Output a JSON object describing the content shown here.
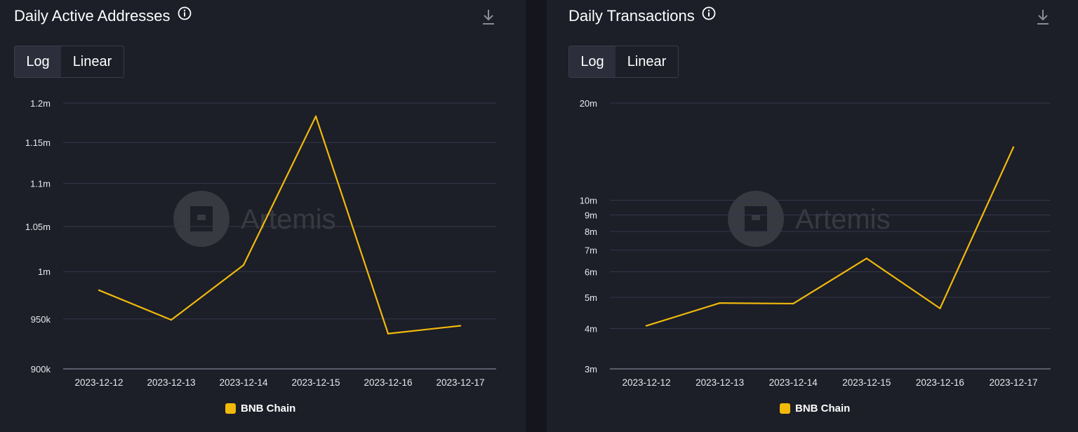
{
  "panels": [
    {
      "title": "Daily Active Addresses",
      "toggle": {
        "options": [
          "Log",
          "Linear"
        ],
        "selected": "Log"
      },
      "icons": {
        "info": "info-icon",
        "download": "download-icon"
      },
      "watermark": "Artemis",
      "legend": [
        {
          "label": "BNB Chain",
          "color": "#f0b90b"
        }
      ]
    },
    {
      "title": "Daily Transactions",
      "toggle": {
        "options": [
          "Log",
          "Linear"
        ],
        "selected": "Log"
      },
      "icons": {
        "info": "info-icon",
        "download": "download-icon"
      },
      "watermark": "Artemis",
      "legend": [
        {
          "label": "BNB Chain",
          "color": "#f0b90b"
        }
      ]
    }
  ],
  "chart_data": [
    {
      "type": "line",
      "title": "Daily Active Addresses",
      "scale": "log",
      "x": [
        "2023-12-12",
        "2023-12-13",
        "2023-12-14",
        "2023-12-15",
        "2023-12-16",
        "2023-12-17"
      ],
      "series": [
        {
          "name": "BNB Chain",
          "color": "#f0b90b",
          "values": [
            980000,
            949000,
            1007000,
            1183000,
            935000,
            943000
          ]
        }
      ],
      "yticks": [
        {
          "value": 900000,
          "label": "900k"
        },
        {
          "value": 950000,
          "label": "950k"
        },
        {
          "value": 1000000,
          "label": "1m"
        },
        {
          "value": 1050000,
          "label": "1.05m"
        },
        {
          "value": 1100000,
          "label": "1.1m"
        },
        {
          "value": 1150000,
          "label": "1.15m"
        },
        {
          "value": 1200000,
          "label": "1.2m"
        }
      ],
      "ylim": [
        900000,
        1200000
      ],
      "grid": true,
      "legend_position": "bottom"
    },
    {
      "type": "line",
      "title": "Daily Transactions",
      "scale": "log",
      "x": [
        "2023-12-12",
        "2023-12-13",
        "2023-12-14",
        "2023-12-15",
        "2023-12-16",
        "2023-12-17"
      ],
      "series": [
        {
          "name": "BNB Chain",
          "color": "#f0b90b",
          "values": [
            4080000,
            4800000,
            4780000,
            6600000,
            4620000,
            14600000
          ]
        }
      ],
      "yticks": [
        {
          "value": 3000000,
          "label": "3m"
        },
        {
          "value": 4000000,
          "label": "4m"
        },
        {
          "value": 5000000,
          "label": "5m"
        },
        {
          "value": 6000000,
          "label": "6m"
        },
        {
          "value": 7000000,
          "label": "7m"
        },
        {
          "value": 8000000,
          "label": "8m"
        },
        {
          "value": 9000000,
          "label": "9m"
        },
        {
          "value": 10000000,
          "label": "10m"
        },
        {
          "value": 20000000,
          "label": "20m"
        }
      ],
      "ylim": [
        3000000,
        20000000
      ],
      "grid": true,
      "legend_position": "bottom"
    }
  ]
}
